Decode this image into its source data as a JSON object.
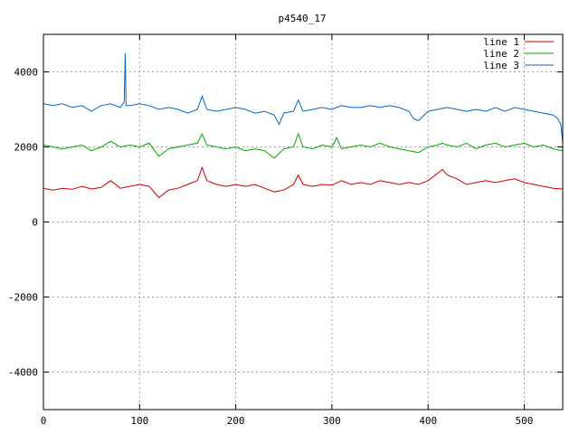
{
  "chart_data": {
    "type": "line",
    "title": "p4540_17",
    "xlabel": "",
    "ylabel": "",
    "xlim": [
      0,
      540
    ],
    "ylim": [
      -5000,
      5000
    ],
    "x_ticks": [
      0,
      100,
      200,
      300,
      400,
      500
    ],
    "y_ticks": [
      -4000,
      -2000,
      0,
      2000,
      4000
    ],
    "grid": true,
    "legend_position": "top-right",
    "series": [
      {
        "name": "line 1",
        "color": "#cc0000",
        "x": [
          0,
          10,
          20,
          30,
          40,
          50,
          60,
          70,
          80,
          90,
          100,
          110,
          120,
          130,
          140,
          150,
          160,
          165,
          170,
          180,
          190,
          200,
          210,
          220,
          230,
          240,
          250,
          260,
          265,
          270,
          280,
          290,
          300,
          310,
          320,
          330,
          340,
          350,
          360,
          370,
          380,
          390,
          400,
          410,
          415,
          420,
          430,
          440,
          450,
          460,
          470,
          480,
          490,
          500,
          510,
          520,
          530,
          540
        ],
        "values": [
          900,
          850,
          900,
          870,
          950,
          880,
          920,
          1100,
          900,
          950,
          1000,
          950,
          650,
          850,
          900,
          1000,
          1100,
          1450,
          1100,
          1000,
          950,
          1000,
          950,
          1000,
          900,
          800,
          850,
          1000,
          1250,
          1000,
          950,
          1000,
          980,
          1100,
          1000,
          1050,
          1000,
          1100,
          1050,
          1000,
          1050,
          1000,
          1100,
          1300,
          1400,
          1250,
          1150,
          1000,
          1050,
          1100,
          1050,
          1100,
          1150,
          1050,
          1000,
          950,
          900,
          880
        ]
      },
      {
        "name": "line 2",
        "color": "#00aa00",
        "x": [
          0,
          10,
          20,
          30,
          40,
          50,
          60,
          70,
          80,
          90,
          100,
          110,
          120,
          130,
          140,
          150,
          160,
          165,
          170,
          180,
          190,
          200,
          210,
          220,
          230,
          240,
          250,
          260,
          265,
          270,
          280,
          290,
          300,
          305,
          310,
          320,
          330,
          340,
          350,
          360,
          370,
          380,
          390,
          400,
          410,
          415,
          420,
          430,
          440,
          450,
          460,
          470,
          480,
          490,
          500,
          510,
          520,
          530,
          540
        ],
        "values": [
          2050,
          2000,
          1950,
          2000,
          2050,
          1900,
          2000,
          2150,
          2000,
          2050,
          2000,
          2100,
          1750,
          1950,
          2000,
          2050,
          2100,
          2350,
          2050,
          2000,
          1950,
          2000,
          1900,
          1950,
          1900,
          1700,
          1950,
          2000,
          2350,
          2000,
          1950,
          2050,
          2000,
          2250,
          1950,
          2000,
          2050,
          2000,
          2100,
          2000,
          1950,
          1900,
          1850,
          2000,
          2050,
          2100,
          2050,
          2000,
          2100,
          1950,
          2050,
          2100,
          2000,
          2050,
          2100,
          2000,
          2050,
          1950,
          1900
        ]
      },
      {
        "name": "line 3",
        "color": "#0066cc",
        "x": [
          0,
          10,
          20,
          30,
          40,
          50,
          60,
          70,
          80,
          84,
          85,
          86,
          90,
          100,
          110,
          120,
          130,
          140,
          150,
          160,
          165,
          170,
          180,
          190,
          200,
          210,
          220,
          230,
          240,
          245,
          250,
          260,
          265,
          270,
          280,
          290,
          300,
          310,
          320,
          330,
          340,
          350,
          360,
          370,
          380,
          385,
          390,
          400,
          410,
          420,
          430,
          440,
          450,
          460,
          470,
          480,
          490,
          500,
          510,
          520,
          530,
          535,
          538,
          540
        ],
        "values": [
          3150,
          3100,
          3150,
          3050,
          3100,
          2950,
          3100,
          3150,
          3050,
          3200,
          4500,
          3100,
          3100,
          3150,
          3100,
          3000,
          3050,
          3000,
          2900,
          3000,
          3350,
          3000,
          2950,
          3000,
          3050,
          3000,
          2900,
          2950,
          2850,
          2600,
          2900,
          2950,
          3250,
          2950,
          3000,
          3050,
          3000,
          3100,
          3050,
          3050,
          3100,
          3050,
          3100,
          3050,
          2950,
          2750,
          2700,
          2950,
          3000,
          3050,
          3000,
          2950,
          3000,
          2950,
          3050,
          2950,
          3050,
          3000,
          2950,
          2900,
          2850,
          2750,
          2600,
          2100
        ]
      }
    ]
  }
}
